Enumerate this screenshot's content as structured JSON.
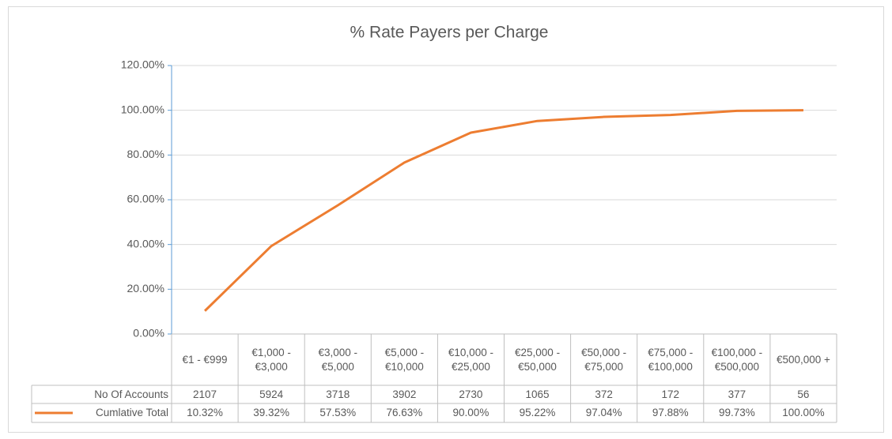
{
  "chart_data": {
    "type": "line",
    "title": "% Rate Payers per Charge",
    "categories": [
      "€1 - €999",
      "€1,000 - €3,000",
      "€3,000 - €5,000",
      "€5,000 - €10,000",
      "€10,000 - €25,000",
      "€25,000 - €50,000",
      "€50,000 - €75,000",
      "€75,000 - €100,000",
      "€100,000 - €500,000",
      "€500,000 +"
    ],
    "series": [
      {
        "name": "No Of Accounts",
        "values": [
          2107,
          5924,
          3718,
          3902,
          2730,
          1065,
          372,
          172,
          377,
          56
        ]
      },
      {
        "name": "Cumlative Total",
        "color": "#ed7d31",
        "values": [
          10.32,
          39.32,
          57.53,
          76.63,
          90.0,
          95.22,
          97.04,
          97.88,
          99.73,
          100.0
        ],
        "value_labels": [
          "10.32%",
          "39.32%",
          "57.53%",
          "76.63%",
          "90.00%",
          "95.22%",
          "97.04%",
          "97.88%",
          "99.73%",
          "100.00%"
        ]
      }
    ],
    "ylim": [
      0,
      120
    ],
    "yticks": [
      {
        "value": 0,
        "label": "0.00%"
      },
      {
        "value": 20,
        "label": "20.00%"
      },
      {
        "value": 40,
        "label": "40.00%"
      },
      {
        "value": 60,
        "label": "60.00%"
      },
      {
        "value": 80,
        "label": "80.00%"
      },
      {
        "value": 100,
        "label": "100.00%"
      },
      {
        "value": 120,
        "label": "120.00%"
      }
    ],
    "grid": true
  }
}
